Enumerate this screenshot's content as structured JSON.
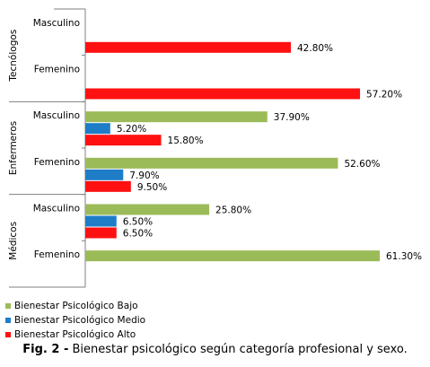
{
  "chart_data": {
    "type": "bar",
    "orientation": "horizontal",
    "groups": [
      {
        "name": "Tecnólogos",
        "categories": [
          {
            "label": "Masculino",
            "values": {
              "bajo": null,
              "medio": null,
              "alto": 42.8
            }
          },
          {
            "label": "Femenino",
            "values": {
              "bajo": null,
              "medio": null,
              "alto": 57.2
            }
          }
        ]
      },
      {
        "name": "Enfermeros",
        "categories": [
          {
            "label": "Masculino",
            "values": {
              "bajo": 37.9,
              "medio": 5.2,
              "alto": 15.8
            }
          },
          {
            "label": "Femenino",
            "values": {
              "bajo": 52.6,
              "medio": 7.9,
              "alto": 9.5
            }
          }
        ]
      },
      {
        "name": "Médicos",
        "categories": [
          {
            "label": "Masculino",
            "values": {
              "bajo": 25.8,
              "medio": 6.5,
              "alto": 6.5
            }
          },
          {
            "label": "Femenino",
            "values": {
              "bajo": 61.3,
              "medio": null,
              "alto": null
            }
          }
        ]
      }
    ],
    "series": [
      {
        "key": "bajo",
        "name": "Bienestar Psicológico Bajo",
        "color": "#9BBB59"
      },
      {
        "key": "medio",
        "name": "Bienestar Psicológico Medio",
        "color": "#1F7DC8"
      },
      {
        "key": "alto",
        "name": "Bienestar Psicológico Alto",
        "color": "#FF1111"
      }
    ],
    "value_format": "percent_2dp",
    "xlim": [
      0,
      70
    ],
    "legend_position": "bottom-left",
    "grid": false
  },
  "caption": {
    "prefix": "Fig. 2 -",
    "text": "Bienestar psicológico según categoría profesional y sexo."
  }
}
